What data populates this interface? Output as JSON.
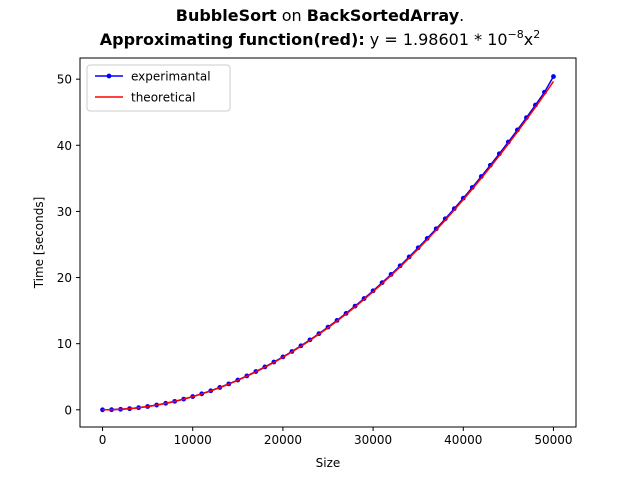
{
  "title": {
    "line1": {
      "algorithm": "BubbleSort",
      "connector": " on ",
      "input": "BackSortedArray",
      "end": "."
    },
    "line2": {
      "label": "Approximating function(red):",
      "formula_prefix": " y = 1.98601 * 10",
      "exp1": "−8",
      "formula_var": "x",
      "exp2": "2"
    }
  },
  "colors": {
    "experimental": "#0000ff",
    "theoretical": "#ff0000",
    "axis": "#000000"
  },
  "chart_data": {
    "type": "line",
    "xlabel": "Size",
    "ylabel": "Time [seconds]",
    "xlim": [
      -2500,
      52500
    ],
    "ylim": [
      -2.6,
      53.2
    ],
    "xticks": [
      0,
      10000,
      20000,
      30000,
      40000,
      50000
    ],
    "xtick_labels": [
      "0",
      "10000",
      "20000",
      "30000",
      "40000",
      "50000"
    ],
    "yticks": [
      0,
      10,
      20,
      30,
      40,
      50
    ],
    "ytick_labels": [
      "0",
      "10",
      "20",
      "30",
      "40",
      "50"
    ],
    "grid": false,
    "legend_position": "top-left",
    "series": [
      {
        "name": "experimantal",
        "color": "#0000ff",
        "marker": "circle",
        "x": [
          0,
          1000,
          2000,
          3000,
          4000,
          5000,
          6000,
          7000,
          8000,
          9000,
          10000,
          11000,
          12000,
          13000,
          14000,
          15000,
          16000,
          17000,
          18000,
          19000,
          20000,
          21000,
          22000,
          23000,
          24000,
          25000,
          26000,
          27000,
          28000,
          29000,
          30000,
          31000,
          32000,
          33000,
          34000,
          35000,
          36000,
          37000,
          38000,
          39000,
          40000,
          41000,
          42000,
          43000,
          44000,
          45000,
          46000,
          47000,
          48000,
          49000,
          50000
        ],
        "y": [
          0.0,
          0.02,
          0.08,
          0.18,
          0.32,
          0.5,
          0.72,
          0.98,
          1.28,
          1.62,
          2.0,
          2.42,
          2.88,
          3.38,
          3.92,
          4.5,
          5.12,
          5.78,
          6.48,
          7.22,
          8.0,
          8.82,
          9.68,
          10.58,
          11.52,
          12.5,
          13.52,
          14.58,
          15.68,
          16.82,
          18.0,
          19.22,
          20.48,
          21.78,
          23.12,
          24.5,
          25.92,
          27.38,
          28.88,
          30.42,
          32.0,
          33.62,
          35.28,
          36.98,
          38.72,
          40.5,
          42.32,
          44.18,
          46.08,
          48.02,
          50.4
        ]
      },
      {
        "name": "theoretical",
        "color": "#ff0000",
        "marker": "none",
        "coef": 1.98601e-08
      }
    ]
  }
}
